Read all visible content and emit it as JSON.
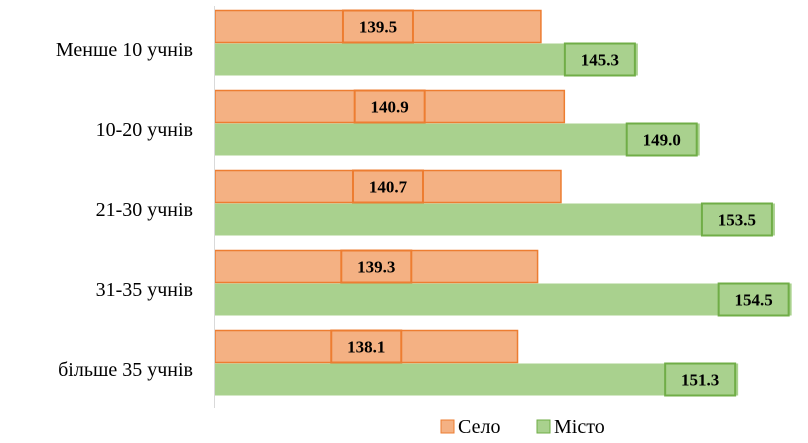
{
  "chart_data": {
    "type": "bar",
    "orientation": "horizontal",
    "categories": [
      "Менше 10 учнів",
      "10-20 учнів",
      "21-30 учнів",
      "31-35 учнів",
      "більше 35 учнів"
    ],
    "series": [
      {
        "name": "Село",
        "values": [
          139.5,
          140.9,
          140.7,
          139.3,
          138.1
        ],
        "labels": [
          "139.5",
          "140.9",
          "140.7",
          "139.3",
          "138.1"
        ],
        "fill": "#f4b183",
        "stroke": "#ed7d31"
      },
      {
        "name": "Місто",
        "values": [
          145.3,
          149.0,
          153.5,
          154.5,
          151.3
        ],
        "labels": [
          "145.3",
          "149.0",
          "153.5",
          "154.5",
          "151.3"
        ],
        "fill": "#a9d18e",
        "stroke": "#70ad47"
      }
    ],
    "xlim": [
      120,
      155
    ],
    "axis_visible": false,
    "grid": false,
    "legend": "bottom"
  }
}
